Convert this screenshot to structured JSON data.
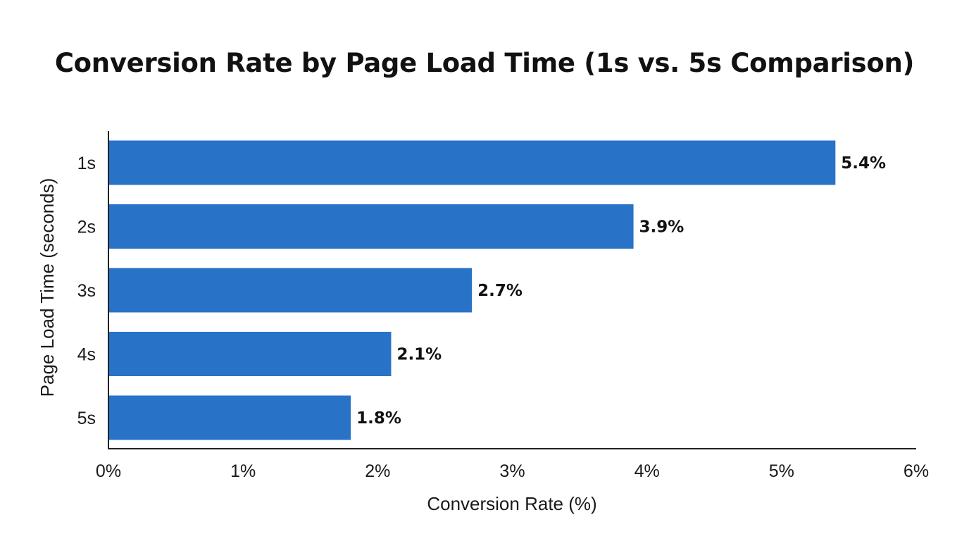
{
  "chart_data": {
    "type": "bar",
    "orientation": "horizontal",
    "title": "Conversion Rate by Page Load Time (1s vs. 5s Comparison)",
    "xlabel": "Conversion Rate (%)",
    "ylabel": "Page Load Time (seconds)",
    "categories": [
      "1s",
      "2s",
      "3s",
      "4s",
      "5s"
    ],
    "values": [
      5.4,
      3.9,
      2.7,
      2.1,
      1.8
    ],
    "value_labels": [
      "5.4%",
      "3.9%",
      "2.7%",
      "2.1%",
      "1.8%"
    ],
    "xlim": [
      0,
      6
    ],
    "xticks": [
      0,
      1,
      2,
      3,
      4,
      5,
      6
    ],
    "xtick_labels": [
      "0%",
      "1%",
      "2%",
      "3%",
      "4%",
      "5%",
      "6%"
    ],
    "grid": false,
    "legend": "none",
    "bar_color": "#2872c8",
    "axis_color": "#222222"
  }
}
